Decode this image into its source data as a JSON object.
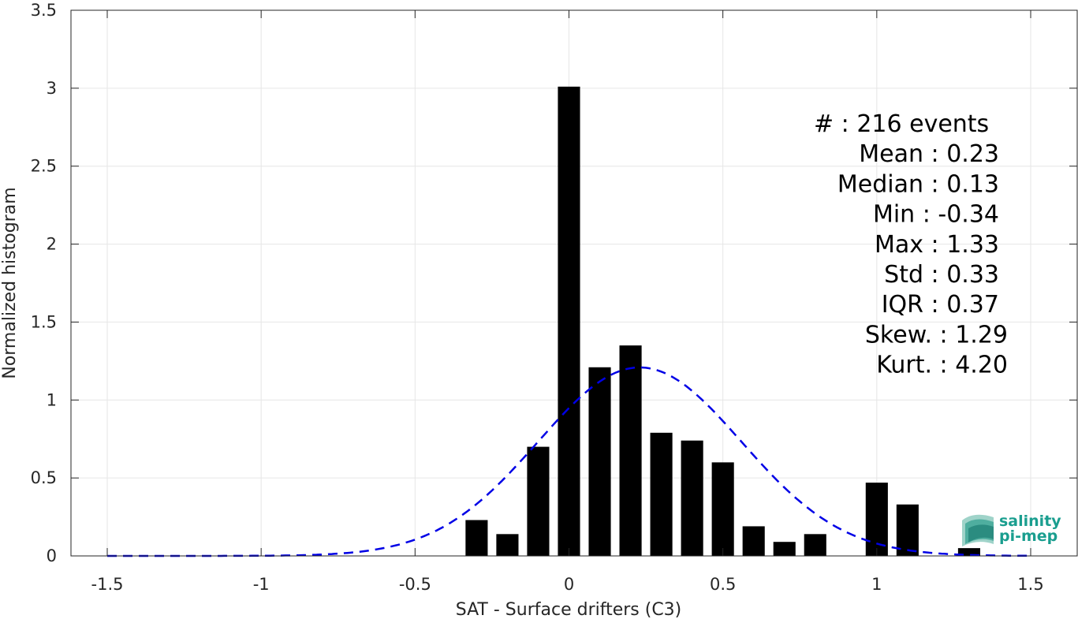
{
  "chart_data": {
    "type": "bar",
    "xlabel": "SAT - Surface drifters (C3)",
    "ylabel": "Normalized histogram",
    "xlim": [
      -1.5,
      1.5
    ],
    "ylim": [
      0,
      3.5
    ],
    "xticks": [
      "-1.5",
      "-1",
      "-0.5",
      "0",
      "0.5",
      "1",
      "1.5"
    ],
    "yticks": [
      "0",
      "0.5",
      "1",
      "1.5",
      "2",
      "2.5",
      "3",
      "3.5"
    ],
    "grid": true,
    "bin_width": 0.1,
    "bars": [
      {
        "x": -0.3,
        "y": 0.23
      },
      {
        "x": -0.2,
        "y": 0.14
      },
      {
        "x": -0.1,
        "y": 0.7
      },
      {
        "x": 0.0,
        "y": 3.01
      },
      {
        "x": 0.1,
        "y": 1.21
      },
      {
        "x": 0.2,
        "y": 1.35
      },
      {
        "x": 0.3,
        "y": 0.79
      },
      {
        "x": 0.4,
        "y": 0.74
      },
      {
        "x": 0.5,
        "y": 0.6
      },
      {
        "x": 0.6,
        "y": 0.19
      },
      {
        "x": 0.7,
        "y": 0.09
      },
      {
        "x": 0.8,
        "y": 0.14
      },
      {
        "x": 1.0,
        "y": 0.47
      },
      {
        "x": 1.1,
        "y": 0.33
      },
      {
        "x": 1.3,
        "y": 0.05
      }
    ],
    "fit": {
      "type": "normal",
      "mean": 0.23,
      "std": 0.33,
      "color": "#0000e6",
      "style": "dashed"
    },
    "stats": [
      {
        "label": "#  : 216 events",
        "align": "left"
      },
      {
        "label": "Mean : 0.23"
      },
      {
        "label": "Median : 0.13"
      },
      {
        "label": "Min : -0.34"
      },
      {
        "label": "Max : 1.33"
      },
      {
        "label": "Std : 0.33"
      },
      {
        "label": "IQR : 0.37"
      },
      {
        "label": "Skew. : 1.29"
      },
      {
        "label": "Kurt. : 4.20"
      }
    ],
    "bar_color": "#000000"
  },
  "logo": {
    "line1": "salinity",
    "line2": "pi-mep",
    "color": "#1a9e8f"
  }
}
